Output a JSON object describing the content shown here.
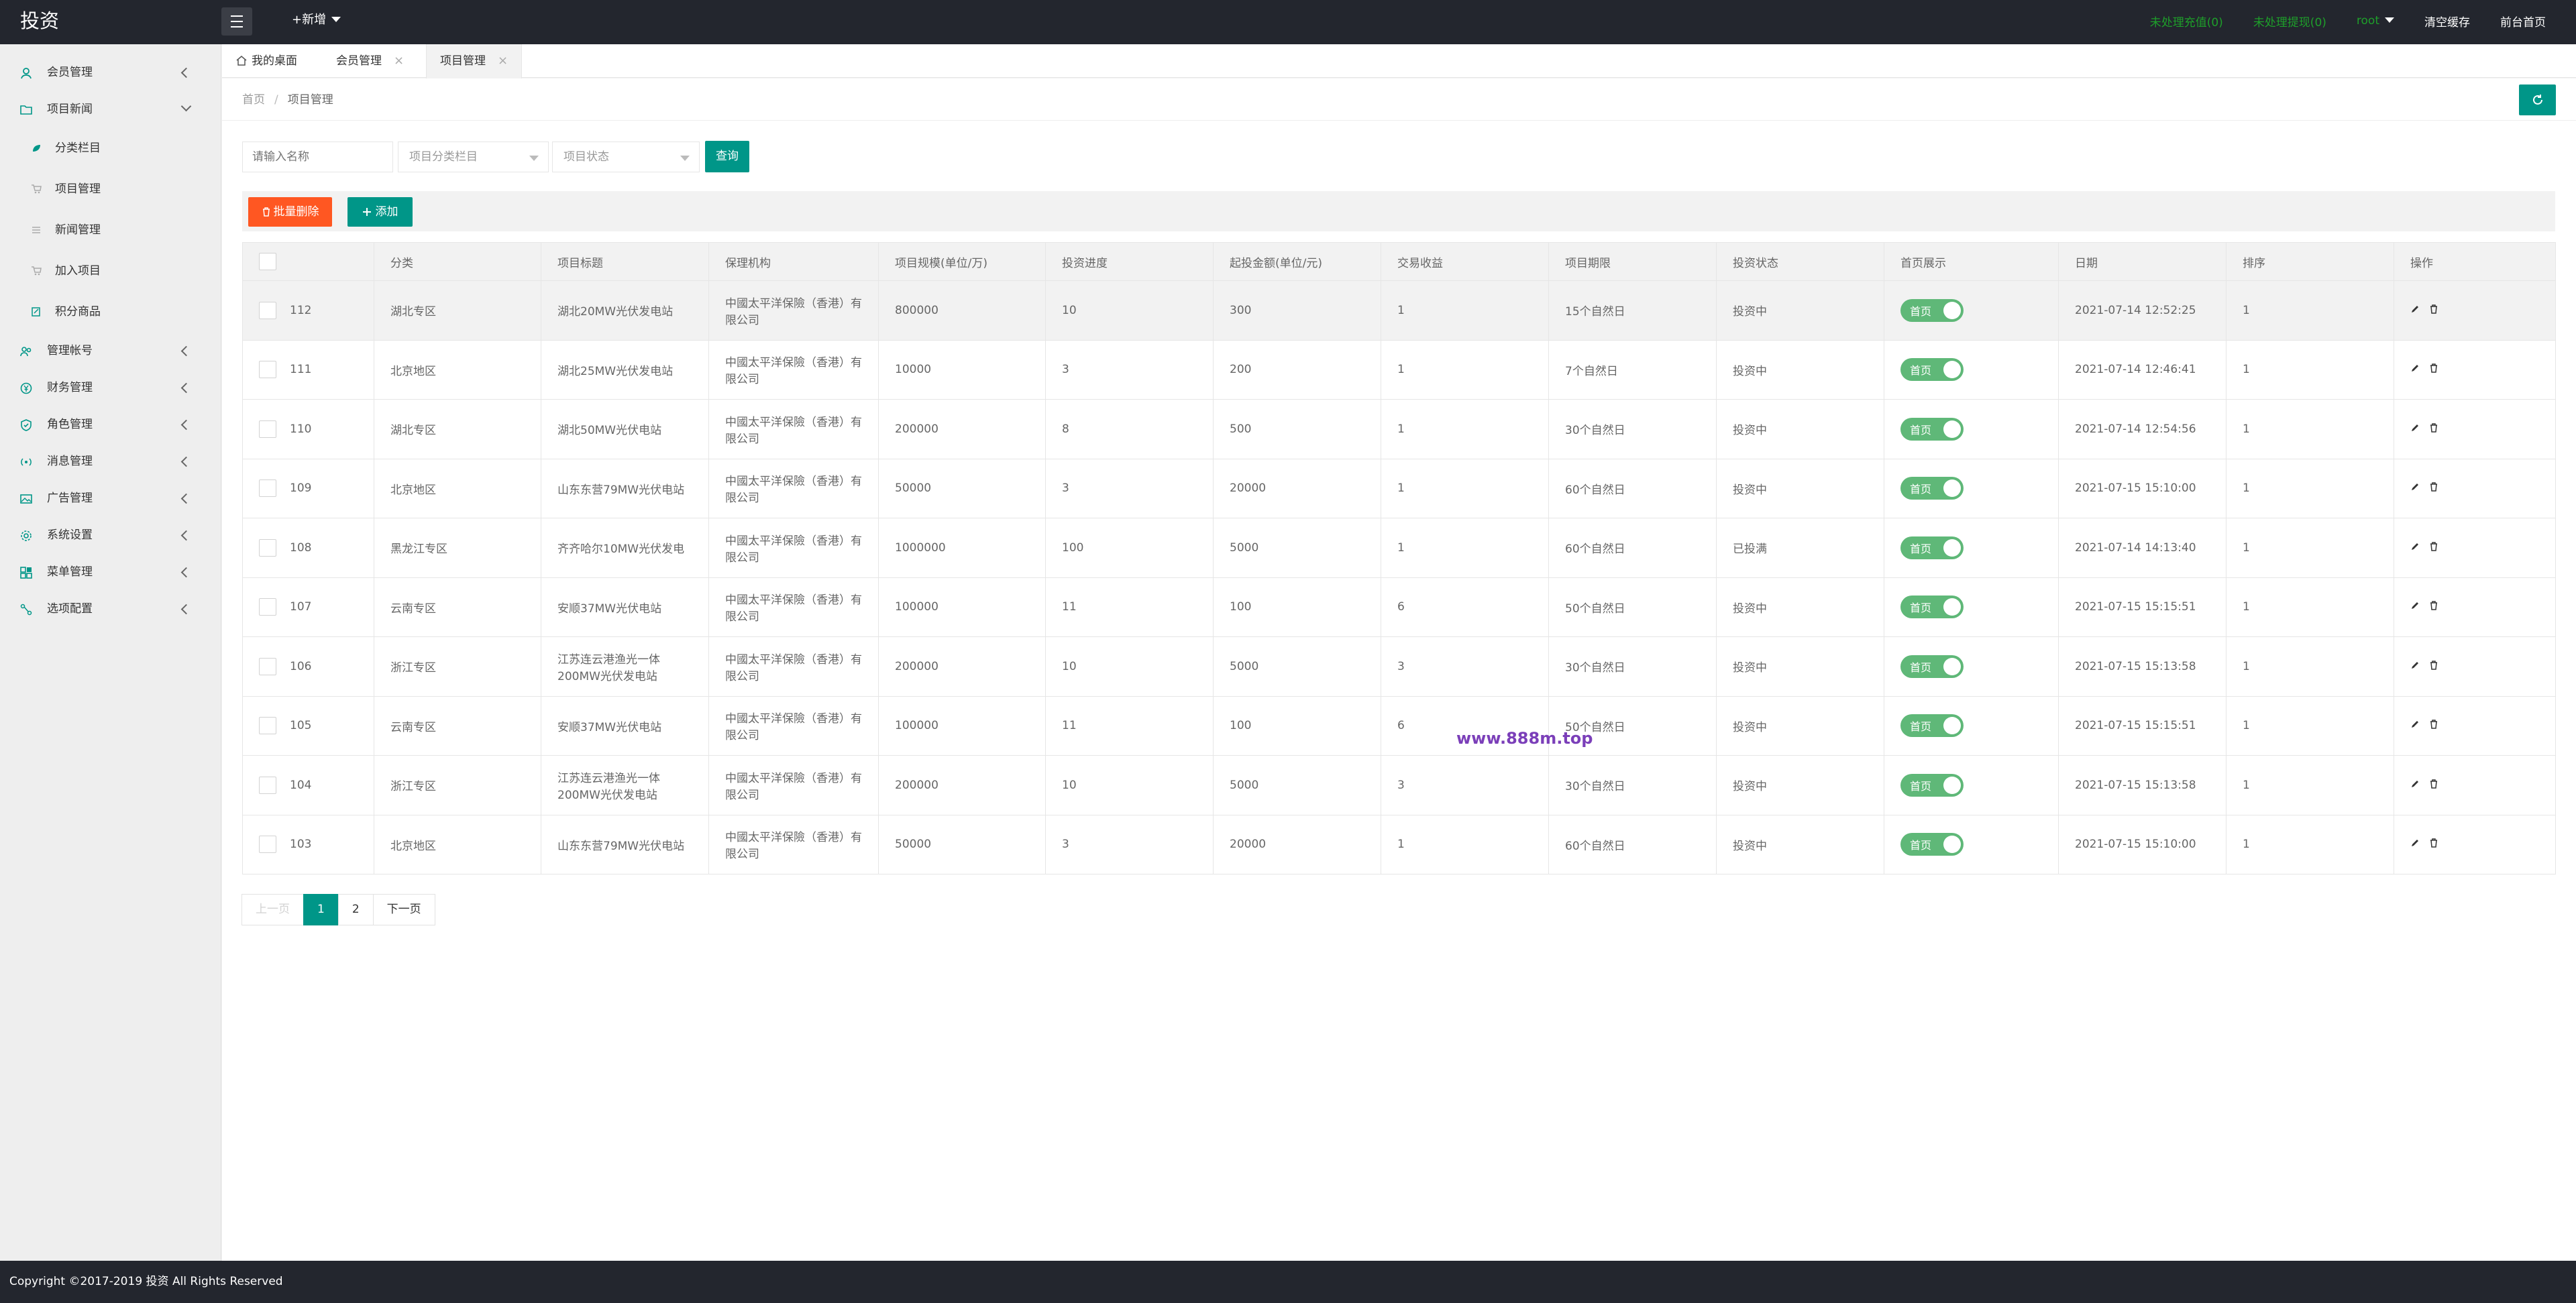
{
  "app": {
    "title": "投资"
  },
  "header": {
    "new_label": "+新增",
    "pending_recharge": "未处理充值(0)",
    "pending_withdraw": "未处理提现(0)",
    "user": "root",
    "clear_cache": "清空缓存",
    "home": "前台首页"
  },
  "sidebar": {
    "items": [
      {
        "label": "会员管理"
      },
      {
        "label": "项目新闻"
      },
      {
        "label": "管理帐号"
      },
      {
        "label": "财务管理"
      },
      {
        "label": "角色管理"
      },
      {
        "label": "消息管理"
      },
      {
        "label": "广告管理"
      },
      {
        "label": "系统设置"
      },
      {
        "label": "菜单管理"
      },
      {
        "label": "选项配置"
      }
    ],
    "sub_items": [
      {
        "label": "分类栏目"
      },
      {
        "label": "项目管理"
      },
      {
        "label": "新闻管理"
      },
      {
        "label": "加入项目"
      },
      {
        "label": "积分商品"
      }
    ]
  },
  "tabs": [
    {
      "label": "我的桌面"
    },
    {
      "label": "会员管理"
    },
    {
      "label": "项目管理"
    }
  ],
  "breadcrumb": {
    "home": "首页",
    "sep": "/",
    "current": "项目管理"
  },
  "filters": {
    "name_placeholder": "请输入名称",
    "category_placeholder": "项目分类栏目",
    "status_placeholder": "项目状态",
    "query_label": "查询"
  },
  "toolbar": {
    "batch_delete": "批量删除",
    "add": "添加"
  },
  "table": {
    "headers": [
      "分类",
      "项目标题",
      "保理机构",
      "项目规模(单位/万)",
      "投资进度",
      "起投金额(单位/元)",
      "交易收益",
      "项目期限",
      "投资状态",
      "首页展示",
      "日期",
      "排序",
      "操作"
    ],
    "rows": [
      {
        "id": "112",
        "cat": "湖北专区",
        "title": "湖北20MW光伏发电站",
        "org": "中國太平洋保險（香港）有限公司",
        "scale": "800000",
        "progress": "10",
        "min": "300",
        "income": "1",
        "term": "15个自然日",
        "status": "投资中",
        "home": "首页",
        "date": "2021-07-14 12:52:25",
        "sort": "1"
      },
      {
        "id": "111",
        "cat": "北京地区",
        "title": "湖北25MW光伏发电站",
        "org": "中國太平洋保險（香港）有限公司",
        "scale": "10000",
        "progress": "3",
        "min": "200",
        "income": "1",
        "term": "7个自然日",
        "status": "投资中",
        "home": "首页",
        "date": "2021-07-14 12:46:41",
        "sort": "1"
      },
      {
        "id": "110",
        "cat": "湖北专区",
        "title": "湖北50MW光伏电站",
        "org": "中國太平洋保險（香港）有限公司",
        "scale": "200000",
        "progress": "8",
        "min": "500",
        "income": "1",
        "term": "30个自然日",
        "status": "投资中",
        "home": "首页",
        "date": "2021-07-14 12:54:56",
        "sort": "1"
      },
      {
        "id": "109",
        "cat": "北京地区",
        "title": "山东东营79MW光伏电站",
        "org": "中國太平洋保險（香港）有限公司",
        "scale": "50000",
        "progress": "3",
        "min": "20000",
        "income": "1",
        "term": "60个自然日",
        "status": "投资中",
        "home": "首页",
        "date": "2021-07-15 15:10:00",
        "sort": "1"
      },
      {
        "id": "108",
        "cat": "黑龙江专区",
        "title": "齐齐哈尔10MW光伏发电",
        "org": "中國太平洋保險（香港）有限公司",
        "scale": "1000000",
        "progress": "100",
        "min": "5000",
        "income": "1",
        "term": "60个自然日",
        "status": "已投满",
        "home": "首页",
        "date": "2021-07-14 14:13:40",
        "sort": "1"
      },
      {
        "id": "107",
        "cat": "云南专区",
        "title": "安顺37MW光伏电站",
        "org": "中國太平洋保險（香港）有限公司",
        "scale": "100000",
        "progress": "11",
        "min": "100",
        "income": "6",
        "term": "50个自然日",
        "status": "投资中",
        "home": "首页",
        "date": "2021-07-15 15:15:51",
        "sort": "1"
      },
      {
        "id": "106",
        "cat": "浙江专区",
        "title": "江苏连云港渔光一体200MW光伏发电站",
        "org": "中國太平洋保險（香港）有限公司",
        "scale": "200000",
        "progress": "10",
        "min": "5000",
        "income": "3",
        "term": "30个自然日",
        "status": "投资中",
        "home": "首页",
        "date": "2021-07-15 15:13:58",
        "sort": "1"
      },
      {
        "id": "105",
        "cat": "云南专区",
        "title": "安顺37MW光伏电站",
        "org": "中國太平洋保險（香港）有限公司",
        "scale": "100000",
        "progress": "11",
        "min": "100",
        "income": "6",
        "term": "50个自然日",
        "status": "投资中",
        "home": "首页",
        "date": "2021-07-15 15:15:51",
        "sort": "1"
      },
      {
        "id": "104",
        "cat": "浙江专区",
        "title": "江苏连云港渔光一体200MW光伏发电站",
        "org": "中國太平洋保險（香港）有限公司",
        "scale": "200000",
        "progress": "10",
        "min": "5000",
        "income": "3",
        "term": "30个自然日",
        "status": "投资中",
        "home": "首页",
        "date": "2021-07-15 15:13:58",
        "sort": "1"
      },
      {
        "id": "103",
        "cat": "北京地区",
        "title": "山东东营79MW光伏电站",
        "org": "中國太平洋保險（香港）有限公司",
        "scale": "50000",
        "progress": "3",
        "min": "20000",
        "income": "1",
        "term": "60个自然日",
        "status": "投资中",
        "home": "首页",
        "date": "2021-07-15 15:10:00",
        "sort": "1"
      }
    ]
  },
  "watermark": "www.888m.top",
  "pagination": {
    "prev": "上一页",
    "pages": [
      "1",
      "2"
    ],
    "next": "下一页"
  },
  "footer": {
    "copyright": "Copyright ©2017-2019 投资 All Rights Reserved"
  },
  "colors": {
    "primary": "#009688",
    "danger": "#ff5722",
    "switch_on": "#5fb878",
    "topbar": "#23262e",
    "pending": "#1e9f2a"
  }
}
